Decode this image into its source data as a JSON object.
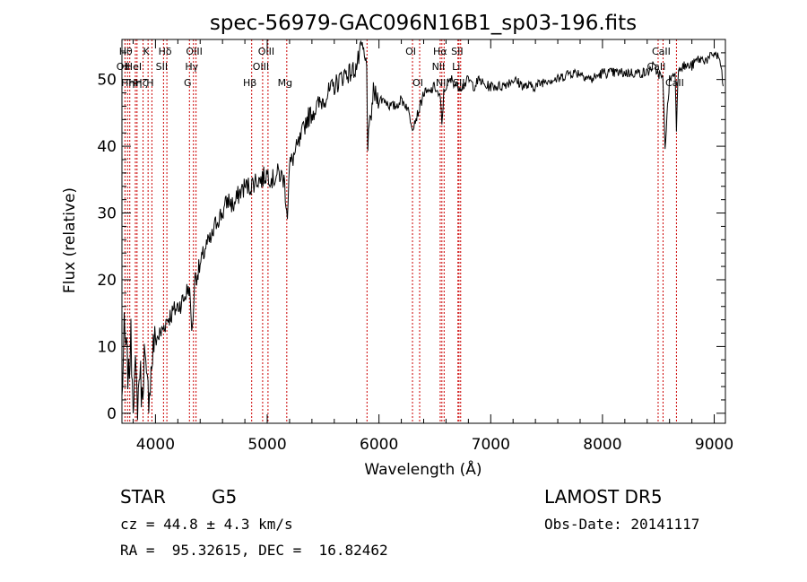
{
  "chart_data": {
    "type": "line",
    "title": "spec-56979-GAC096N16B1_sp03-196.fits",
    "xlabel": "Wavelength (Å)",
    "ylabel": "Flux (relative)",
    "xlim": [
      3700,
      9100
    ],
    "ylim": [
      -1.5,
      56
    ],
    "x_ticks": [
      {
        "value": 4000,
        "label": "4000"
      },
      {
        "value": 5000,
        "label": "5000"
      },
      {
        "value": 6000,
        "label": "6000"
      },
      {
        "value": 7000,
        "label": "7000"
      },
      {
        "value": 8000,
        "label": "8000"
      },
      {
        "value": 9000,
        "label": "9000"
      }
    ],
    "y_ticks": [
      {
        "value": 0,
        "label": "0"
      },
      {
        "value": 10,
        "label": "10"
      },
      {
        "value": 20,
        "label": "20"
      },
      {
        "value": 30,
        "label": "30"
      },
      {
        "value": 40,
        "label": "40"
      },
      {
        "value": 50,
        "label": "50"
      }
    ],
    "grid": false,
    "line_color": "#000000",
    "marker_line_color": "#cc0000",
    "series": [
      {
        "x": [
          3700,
          3720,
          3740,
          3760,
          3780,
          3800,
          3820,
          3840,
          3860,
          3880,
          3900,
          3920,
          3940,
          3960,
          3980,
          4000,
          4050,
          4100,
          4150,
          4200,
          4250,
          4300,
          4330,
          4350,
          4400,
          4450,
          4500,
          4550,
          4600,
          4650,
          4700,
          4750,
          4800,
          4850,
          4900,
          4950,
          5000,
          5050,
          5100,
          5150,
          5180,
          5200,
          5250,
          5300,
          5350,
          5400,
          5450,
          5500,
          5550,
          5600,
          5650,
          5700,
          5750,
          5800,
          5850,
          5870,
          5890,
          5900,
          5950,
          6000,
          6050,
          6100,
          6150,
          6200,
          6250,
          6300,
          6350,
          6400,
          6450,
          6500,
          6550,
          6563,
          6580,
          6600,
          6650,
          6700,
          6750,
          6800,
          6850,
          6900,
          6950,
          7000,
          7100,
          7200,
          7300,
          7400,
          7500,
          7600,
          7700,
          7800,
          7900,
          8000,
          8100,
          8200,
          8300,
          8400,
          8450,
          8500,
          8540,
          8560,
          8600,
          8650,
          8662,
          8680,
          8700,
          8750,
          8800,
          8850,
          8900,
          8950,
          9000,
          9050,
          9080
        ],
        "y": [
          2,
          12,
          9,
          5,
          11,
          3,
          6,
          1,
          7,
          2,
          9,
          4,
          3,
          6,
          10,
          11,
          12,
          14,
          15,
          16,
          17,
          19,
          12,
          20,
          22,
          25,
          26,
          29,
          30,
          32,
          31,
          33,
          34,
          34,
          35,
          35,
          36,
          35,
          36,
          35,
          30,
          37,
          39,
          41,
          44,
          45,
          46,
          47,
          48,
          49,
          50,
          51,
          51,
          52,
          55,
          53,
          52,
          40,
          48,
          47,
          47,
          46,
          46,
          47,
          46,
          43,
          45,
          48,
          48,
          49,
          47,
          43,
          48,
          49,
          50,
          49,
          49,
          50,
          49,
          50,
          49,
          49,
          49,
          50,
          49,
          49,
          50,
          50,
          51,
          51,
          50,
          51,
          51,
          51,
          51,
          51,
          52,
          51,
          50,
          40,
          50,
          51,
          43,
          52,
          52,
          52,
          52,
          53,
          53,
          53,
          54,
          53,
          49
        ]
      }
    ],
    "line_markers": [
      {
        "wavelength": 3727,
        "label": "OII",
        "row": 2
      },
      {
        "wavelength": 3750,
        "label": "Hθ",
        "row": 1
      },
      {
        "wavelength": 3770,
        "label": "Hη",
        "row": 3
      },
      {
        "wavelength": 3820,
        "label": "HeI",
        "row": 2
      },
      {
        "wavelength": 3835,
        "label": "Hη",
        "row": 3
      },
      {
        "wavelength": 3889,
        "label": "Hζ",
        "row": 3
      },
      {
        "wavelength": 3934,
        "label": "K",
        "row": 1
      },
      {
        "wavelength": 3968,
        "label": "H",
        "row": 3
      },
      {
        "wavelength": 4072,
        "label": "SII",
        "row": 2
      },
      {
        "wavelength": 4102,
        "label": "Hδ",
        "row": 1
      },
      {
        "wavelength": 4304,
        "label": "G",
        "row": 3
      },
      {
        "wavelength": 4340,
        "label": "Hγ",
        "row": 2
      },
      {
        "wavelength": 4363,
        "label": "OIII",
        "row": 1
      },
      {
        "wavelength": 4861,
        "label": "Hβ",
        "row": 3
      },
      {
        "wavelength": 4959,
        "label": "OIII",
        "row": 2
      },
      {
        "wavelength": 5007,
        "label": "OIII",
        "row": 1
      },
      {
        "wavelength": 5175,
        "label": "Mg",
        "row": 3
      },
      {
        "wavelength": 5893,
        "label": "",
        "row": 0
      },
      {
        "wavelength": 6300,
        "label": "OI",
        "row": 1
      },
      {
        "wavelength": 6364,
        "label": "OI",
        "row": 3
      },
      {
        "wavelength": 6548,
        "label": "NII",
        "row": 2
      },
      {
        "wavelength": 6563,
        "label": "Hα",
        "row": 1
      },
      {
        "wavelength": 6583,
        "label": "NII",
        "row": 3
      },
      {
        "wavelength": 6707,
        "label": "Li",
        "row": 2
      },
      {
        "wavelength": 6716,
        "label": "SII",
        "row": 1
      },
      {
        "wavelength": 6731,
        "label": "SII",
        "row": 3
      },
      {
        "wavelength": 8498,
        "label": "CaII",
        "row": 2
      },
      {
        "wavelength": 8542,
        "label": "CaII",
        "row": 1
      },
      {
        "wavelength": 8662,
        "label": "CaII",
        "row": 3
      }
    ]
  },
  "info": {
    "object_class": "STAR",
    "subclass": "G5",
    "survey": "LAMOST DR5",
    "cz": "cz = 44.8 ± 4.3 km/s",
    "obs_date": "Obs-Date: 20141117",
    "coords": "RA =  95.32615, DEC =  16.82462"
  }
}
